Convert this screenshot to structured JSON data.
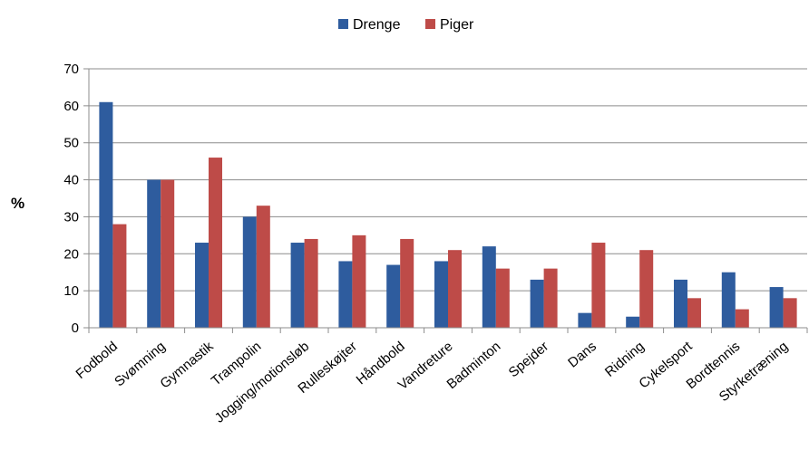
{
  "chart_data": {
    "type": "bar",
    "title": "",
    "xlabel": "",
    "ylabel": "%",
    "ylim": [
      0,
      70
    ],
    "yticks": [
      0,
      10,
      20,
      30,
      40,
      50,
      60,
      70
    ],
    "grid": true,
    "legend_position": "top",
    "categories": [
      "Fodbold",
      "Svømning",
      "Gymnastik",
      "Trampolin",
      "Jogging/motionsløb",
      "Rulleskøjter",
      "Håndbold",
      "Vandreture",
      "Badminton",
      "Spejder",
      "Dans",
      "Ridning",
      "Cykelsport",
      "Bordtennis",
      "Styrketræning"
    ],
    "series": [
      {
        "name": "Drenge",
        "color": "#2E5C9E",
        "values": [
          61,
          40,
          23,
          30,
          23,
          18,
          17,
          18,
          22,
          13,
          4,
          3,
          13,
          15,
          11
        ]
      },
      {
        "name": "Piger",
        "color": "#BE4B48",
        "values": [
          28,
          40,
          46,
          33,
          24,
          25,
          24,
          21,
          16,
          16,
          23,
          21,
          8,
          5,
          8
        ]
      }
    ]
  }
}
